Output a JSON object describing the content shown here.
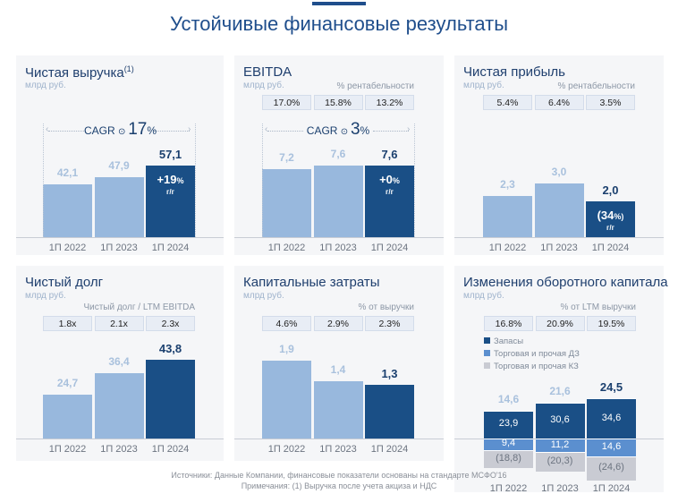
{
  "title": "Устойчивые финансовые результаты",
  "footnotes": {
    "sources": "Источники: Данные Компании, финансовые показатели основаны на стандарте МСФО'16",
    "notes": "Примечания: (1) Выручка после учета акциза и НДС"
  },
  "colors": {
    "title": "#1f4e8c",
    "bar_prior": "#98b8dd",
    "bar_current": "#1a4f86",
    "inventory": "#1a4f86",
    "receivables": "#5b8fcf",
    "payables": "#c9cbd3"
  },
  "chart_data": [
    {
      "type": "bar",
      "title": "Чистая выручка",
      "title_sup": "(1)",
      "unit": "млрд руб.",
      "categories": [
        "1П 2022",
        "1П 2023",
        "1П 2024"
      ],
      "values": [
        42.1,
        47.9,
        57.1
      ],
      "value_labels": [
        "42,1",
        "47,9",
        "57,1"
      ],
      "cagr": {
        "label": "CAGR",
        "value": "17",
        "suffix": "%"
      },
      "yoy": {
        "value": "+19",
        "suffix": "%",
        "sub": "г/г"
      }
    },
    {
      "type": "bar",
      "title": "EBITDA",
      "unit": "млрд руб.",
      "categories": [
        "1П 2022",
        "1П 2023",
        "1П 2024"
      ],
      "values": [
        7.2,
        7.6,
        7.6
      ],
      "value_labels": [
        "7,2",
        "7,6",
        "7,6"
      ],
      "margin_label": "% рентабельности",
      "margins": [
        "17.0%",
        "15.8%",
        "13.2%"
      ],
      "cagr": {
        "label": "CAGR",
        "value": "3",
        "suffix": "%"
      },
      "yoy": {
        "value": "+0",
        "suffix": "%",
        "sub": "г/г"
      }
    },
    {
      "type": "bar",
      "title": "Чистая прибыль",
      "unit": "млрд руб.",
      "categories": [
        "1П 2022",
        "1П 2023",
        "1П 2024"
      ],
      "values": [
        2.3,
        3.0,
        2.0
      ],
      "value_labels": [
        "2,3",
        "3,0",
        "2,0"
      ],
      "margin_label": "% рентабельности",
      "margins": [
        "5.4%",
        "6.4%",
        "3.5%"
      ],
      "yoy": {
        "value": "(34",
        "suffix": "%)",
        "sub": "г/г"
      }
    },
    {
      "type": "bar",
      "title": "Чистый долг",
      "unit": "млрд руб.",
      "categories": [
        "1П 2022",
        "1П 2023",
        "1П 2024"
      ],
      "values": [
        24.7,
        36.4,
        43.8
      ],
      "value_labels": [
        "24,7",
        "36,4",
        "43,8"
      ],
      "margin_label": "Чистый долг / LTM EBITDA",
      "margins": [
        "1.8x",
        "2.1x",
        "2.3x"
      ]
    },
    {
      "type": "bar",
      "title": "Капитальные затраты",
      "unit": "млрд руб.",
      "categories": [
        "1П 2022",
        "1П 2023",
        "1П 2024"
      ],
      "values": [
        1.9,
        1.4,
        1.3
      ],
      "value_labels": [
        "1,9",
        "1,4",
        "1,3"
      ],
      "margin_label": "% от выручки",
      "margins": [
        "4.6%",
        "2.9%",
        "2.3%"
      ]
    },
    {
      "type": "bar",
      "stacked": true,
      "title": "Изменения оборотного капитала",
      "unit": "млрд руб.",
      "categories": [
        "1П 2022",
        "1П 2023",
        "1П 2024"
      ],
      "totals": [
        14.6,
        21.6,
        24.5
      ],
      "total_labels": [
        "14,6",
        "21,6",
        "24,5"
      ],
      "margin_label": "% от LTM выручки",
      "margins": [
        "16.8%",
        "20.9%",
        "19.5%"
      ],
      "legend_placement": "top-left",
      "series": [
        {
          "name": "Запасы",
          "values": [
            23.9,
            30.6,
            34.6
          ],
          "labels": [
            "23,9",
            "30,6",
            "34,6"
          ]
        },
        {
          "name": "Торговая и прочая ДЗ",
          "values": [
            9.4,
            11.2,
            14.6
          ],
          "labels": [
            "9,4",
            "11,2",
            "14,6"
          ]
        },
        {
          "name": "Торговая и прочая КЗ",
          "values": [
            -18.8,
            -20.3,
            -24.6
          ],
          "labels": [
            "(18,8)",
            "(20,3)",
            "(24,6)"
          ]
        }
      ]
    }
  ]
}
